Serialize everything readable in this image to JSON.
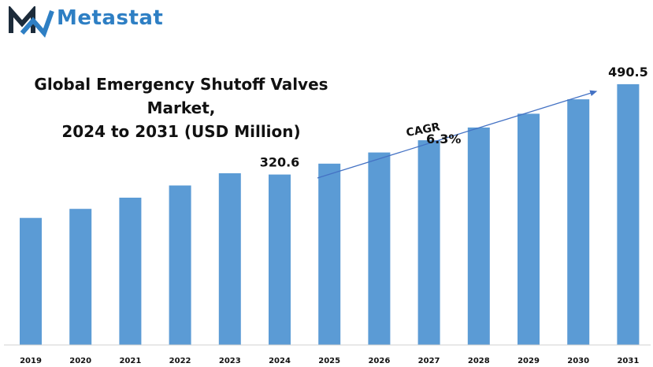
{
  "brand": {
    "name": "Metastat",
    "color": "#2e7fc4",
    "mark_color": "#1c2b3a",
    "logo_icon": "metastat-m-logo-icon"
  },
  "title_line1": "Global Emergency Shutoff Valves  Market,",
  "title_line2": "2024 to 2031 (USD Million)",
  "cagr": {
    "label": "CAGR",
    "value": "6.3%"
  },
  "chart_data": {
    "type": "bar",
    "title": "Global Emergency Shutoff Valves  Market, 2024 to 2031 (USD Million)",
    "categories": [
      "2019",
      "2020",
      "2021",
      "2022",
      "2023",
      "2024",
      "2025",
      "2026",
      "2027",
      "2028",
      "2029",
      "2030",
      "2031"
    ],
    "values": [
      239,
      256,
      277,
      300,
      323,
      320.6,
      341,
      362,
      385,
      409,
      435,
      462,
      490.5
    ],
    "data_labels": [
      {
        "category": "2024",
        "text": "320.6"
      },
      {
        "category": "2031",
        "text": "490.5"
      }
    ],
    "bar_color": "#5b9bd5",
    "ylim": [
      0,
      560
    ],
    "grid": false,
    "legend": "none"
  }
}
